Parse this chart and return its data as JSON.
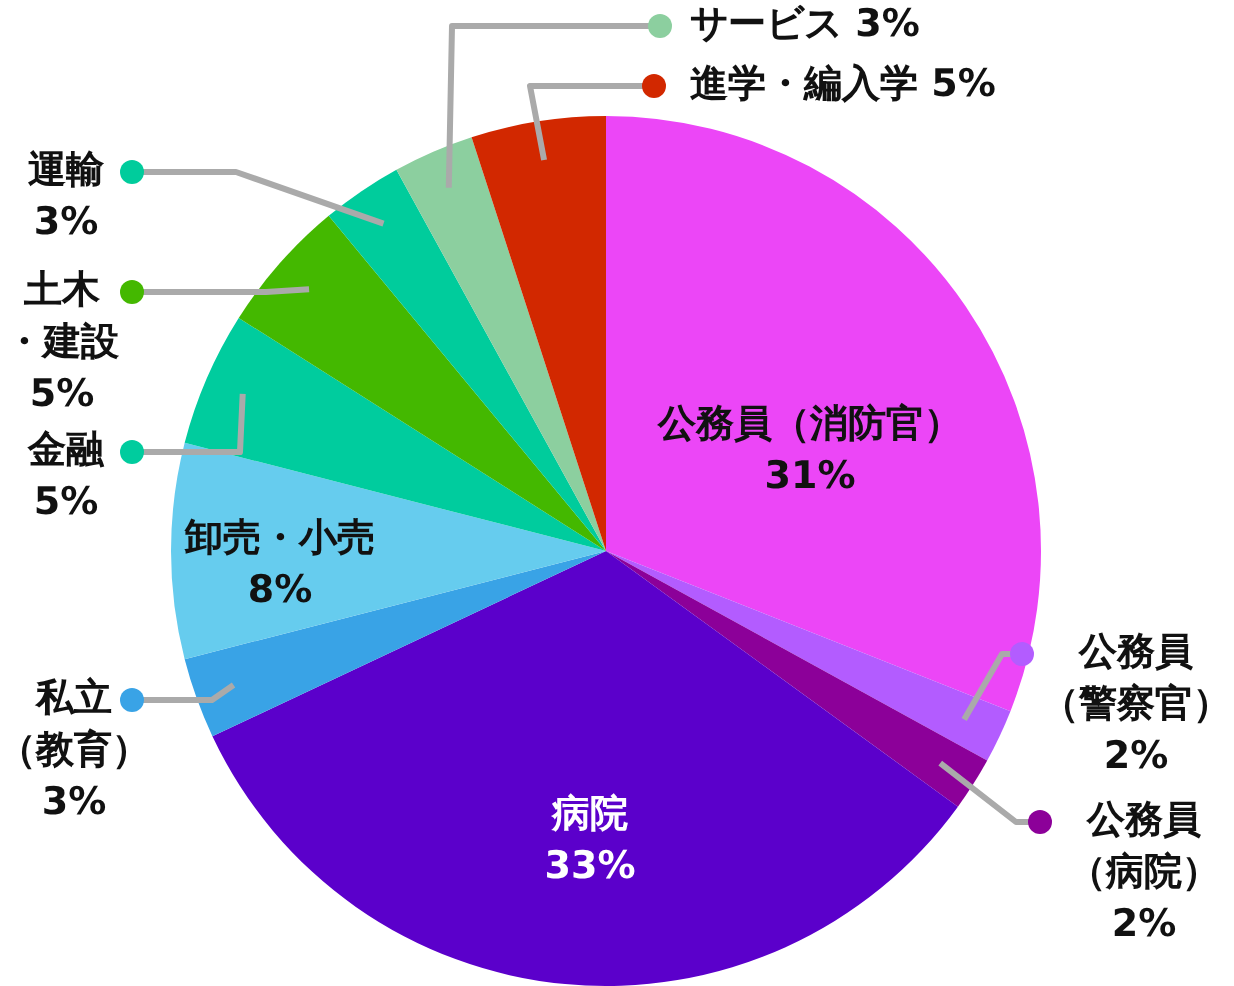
{
  "chart_data": {
    "type": "pie",
    "categories": [
      "公務員（消防官）",
      "公務員（警察官）",
      "公務員（病院）",
      "病院",
      "私立（教育）",
      "卸売・小売",
      "金融",
      "土木・建設",
      "運輸",
      "サービス",
      "進学・編入学"
    ],
    "values": [
      31,
      2,
      2,
      33,
      3,
      8,
      5,
      5,
      3,
      3,
      5
    ],
    "value_labels": [
      "31%",
      "2%",
      "2%",
      "33%",
      "3%",
      "8%",
      "5%",
      "5%",
      "3%",
      "3%",
      "5%"
    ],
    "colors": [
      "#ec46f7",
      "#b35cff",
      "#8c0099",
      "#5b00cb",
      "#39a3e6",
      "#66ccee",
      "#00cc9e",
      "#44b800",
      "#00cc9c",
      "#8ccf9f",
      "#d22800"
    ],
    "legend": "right"
  }
}
